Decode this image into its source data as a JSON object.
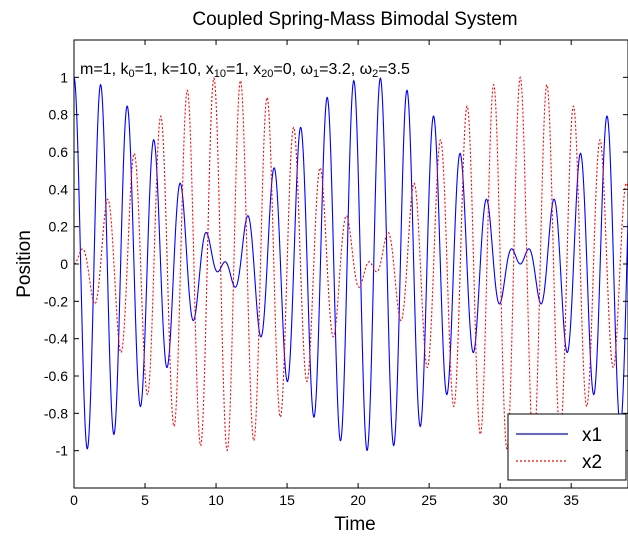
{
  "chart_data": {
    "type": "line",
    "title": "Coupled Spring-Mass Bimodal System",
    "xlabel": "Time",
    "ylabel": "Position",
    "xlim": [
      0,
      39
    ],
    "ylim": [
      -1.2,
      1.2
    ],
    "xticks": [
      0,
      5,
      10,
      15,
      20,
      25,
      30,
      35
    ],
    "yticks": [
      -1,
      -0.8,
      -0.6,
      -0.4,
      -0.2,
      0,
      0.2,
      0.4,
      0.6,
      0.8,
      1
    ],
    "grid": false,
    "legend_position": "bottom-right",
    "annotation": {
      "segments": [
        {
          "t": "m=1, k",
          "s": "normal"
        },
        {
          "t": "0",
          "s": "sub"
        },
        {
          "t": "=1, k=10, x",
          "s": "normal"
        },
        {
          "t": "10",
          "s": "sub"
        },
        {
          "t": "=1, x",
          "s": "normal"
        },
        {
          "t": "20",
          "s": "sub"
        },
        {
          "t": "=0, ω",
          "s": "normal"
        },
        {
          "t": "1",
          "s": "sub"
        },
        {
          "t": "=3.2, ω",
          "s": "normal"
        },
        {
          "t": "2",
          "s": "sub"
        },
        {
          "t": "=3.5",
          "s": "normal"
        }
      ]
    },
    "parameters": {
      "m": 1,
      "k0": 1,
      "k": 10,
      "x10": 1,
      "x20": 0,
      "omega1": 3.2,
      "omega2": 3.5
    },
    "series": [
      {
        "name": "x1",
        "color": "#0000ff",
        "style": "solid",
        "formula": "x1(t) = 0.5*cos(3.2 t) + 0.5*cos(3.5 t)"
      },
      {
        "name": "x2",
        "color": "#ff0000",
        "style": "dotted",
        "formula": "x2(t) = 0.5*cos(3.2 t) - 0.5*cos(3.5 t)"
      }
    ]
  }
}
